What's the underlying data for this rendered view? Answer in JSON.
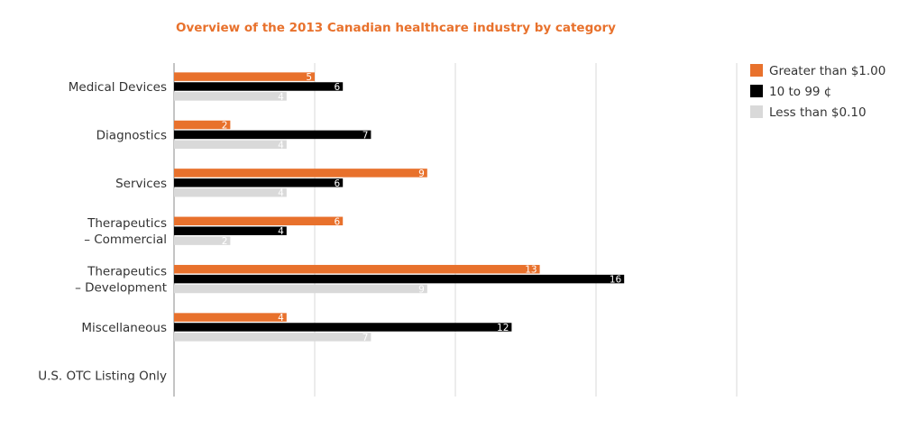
{
  "chart_data": {
    "type": "bar",
    "orientation": "horizontal",
    "title": "Overview of the 2013 Canadian healthcare industry by category",
    "categories": [
      [
        "Medical Devices"
      ],
      [
        "Diagnostics"
      ],
      [
        "Services"
      ],
      [
        "Therapeutics",
        "– Commercial"
      ],
      [
        "Therapeutics",
        "– Development"
      ],
      [
        "Miscellaneous"
      ],
      [
        "U.S. OTC Listing Only"
      ]
    ],
    "series": [
      {
        "name": "Greater than $1.00",
        "color": "#e8712c",
        "values": [
          5,
          2,
          9,
          6,
          13,
          4,
          null
        ]
      },
      {
        "name": "10 to 99 ¢",
        "color": "#000000",
        "values": [
          6,
          7,
          6,
          4,
          16,
          12,
          null
        ]
      },
      {
        "name": "Less than $0.10",
        "color": "#d9d9d9",
        "values": [
          4,
          4,
          4,
          2,
          9,
          7,
          null
        ]
      }
    ],
    "xlim": [
      0,
      20
    ],
    "grid": true,
    "legend": "top-right",
    "colors": {
      "title": "#e8712c",
      "grid": "#d9d9d9",
      "axis": "#888888"
    }
  }
}
